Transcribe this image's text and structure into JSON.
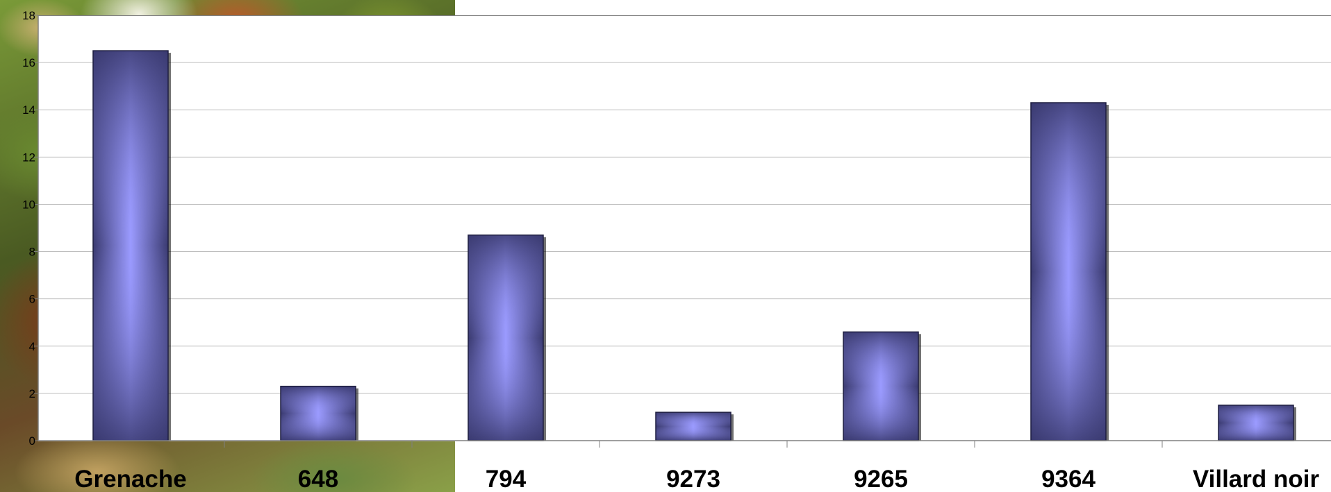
{
  "chart_data": {
    "type": "bar",
    "categories": [
      "Grenache",
      "648",
      "794",
      "9273",
      "9265",
      "9364",
      "Villard noir"
    ],
    "values": [
      16.5,
      2.3,
      8.7,
      1.2,
      4.6,
      14.3,
      1.5
    ],
    "ylim": [
      0,
      18
    ],
    "y_ticks": [
      0,
      2,
      4,
      6,
      8,
      10,
      12,
      14,
      16,
      18
    ],
    "grid": true,
    "legend": "none",
    "title": "",
    "xlabel": "",
    "ylabel": "",
    "bar_color_edge": "#3a3a70",
    "bar_color_center": "#9b9bff"
  }
}
